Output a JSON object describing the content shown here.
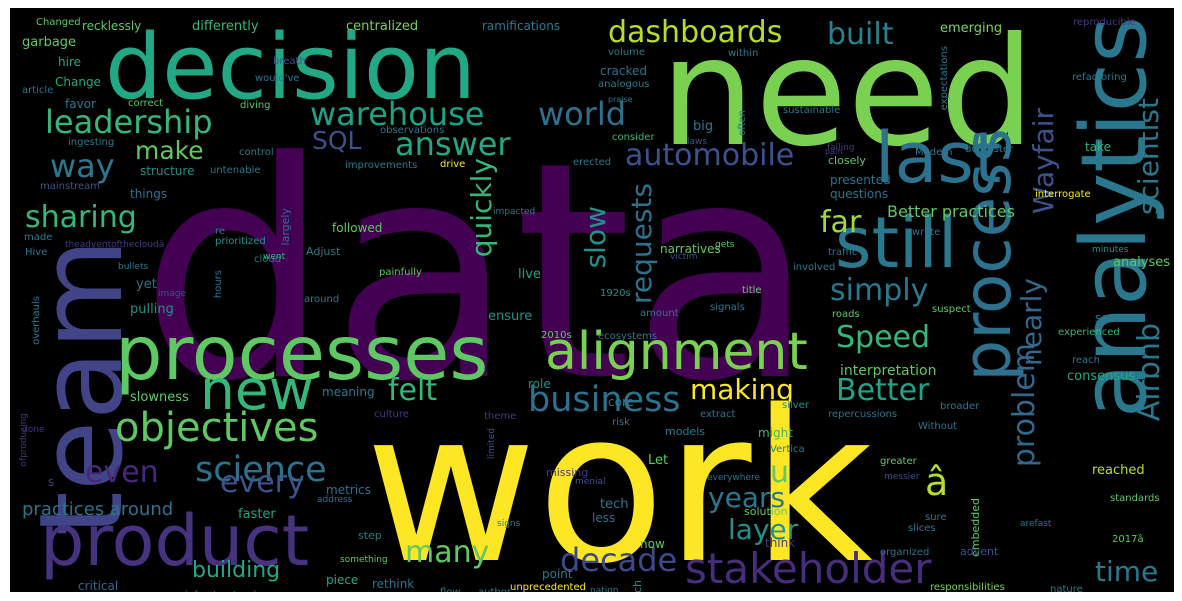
{
  "title": "",
  "background_color": "#000000",
  "colormap": "viridis",
  "words": [
    {
      "text": "data",
      "color": "#440154"
    },
    {
      "text": "work",
      "color": "#fde725"
    },
    {
      "text": "need",
      "color": "#7ad151"
    },
    {
      "text": "decision",
      "color": "#22a884"
    },
    {
      "text": "analytics",
      "color": "#2a788e"
    },
    {
      "text": "team",
      "color": "#414487"
    },
    {
      "text": "processes",
      "color": "#5ec962"
    },
    {
      "text": "product",
      "color": "#46327e"
    },
    {
      "text": "process",
      "color": "#2c728e"
    },
    {
      "text": "still",
      "color": "#2a788e"
    },
    {
      "text": "last",
      "color": "#2c728e"
    },
    {
      "text": "alignment",
      "color": "#7ad151"
    },
    {
      "text": "new",
      "color": "#35b779"
    },
    {
      "text": "objectives",
      "color": "#5ec962"
    },
    {
      "text": "stakeholder",
      "color": "#472d7b"
    },
    {
      "text": "science",
      "color": "#2c728e"
    },
    {
      "text": "business",
      "color": "#2c728e"
    },
    {
      "text": "Airbnb",
      "color": "#2a788e"
    },
    {
      "text": "scientist",
      "color": "#2a788e"
    },
    {
      "text": "Wayfair",
      "color": "#3b528b"
    },
    {
      "text": "problem",
      "color": "#31688e"
    },
    {
      "text": "decade",
      "color": "#3e4989"
    },
    {
      "text": "leadership",
      "color": "#35b779"
    },
    {
      "text": "warehouse",
      "color": "#1fa187"
    },
    {
      "text": "world",
      "color": "#2c728e"
    },
    {
      "text": "dashboards",
      "color": "#b5de2b"
    },
    {
      "text": "built",
      "color": "#26828e"
    },
    {
      "text": "answer",
      "color": "#22a884"
    },
    {
      "text": "way",
      "color": "#2a788e"
    },
    {
      "text": "automobile",
      "color": "#3b528b"
    },
    {
      "text": "sharing",
      "color": "#35b779"
    },
    {
      "text": "quickly",
      "color": "#35b779"
    },
    {
      "text": "requests",
      "color": "#2c728e"
    },
    {
      "text": "slow",
      "color": "#21918c"
    },
    {
      "text": "far",
      "color": "#9fda3a"
    },
    {
      "text": "Speed",
      "color": "#35b779"
    },
    {
      "text": "simply",
      "color": "#2a788e"
    },
    {
      "text": "nearly",
      "color": "#31688e"
    },
    {
      "text": "even",
      "color": "#482878"
    },
    {
      "text": "felt",
      "color": "#35b779"
    },
    {
      "text": "making",
      "color": "#fde725"
    },
    {
      "text": "Better",
      "color": "#20a386"
    },
    {
      "text": "every",
      "color": "#3b528b"
    },
    {
      "text": "years",
      "color": "#2a788e"
    },
    {
      "text": "many",
      "color": "#5ec962"
    },
    {
      "text": "time",
      "color": "#2a788e"
    },
    {
      "text": "layer",
      "color": "#21918c"
    },
    {
      "text": "u",
      "color": "#5ec962"
    },
    {
      "text": "â",
      "color": "#b5de2b"
    },
    {
      "text": "make",
      "color": "#5ec962"
    },
    {
      "text": "SQL",
      "color": "#3b528b"
    },
    {
      "text": "building",
      "color": "#22a884"
    },
    {
      "text": "practices around",
      "color": "#2c728e"
    },
    {
      "text": "Better practices",
      "color": "#5ec962"
    },
    {
      "text": "interpretation",
      "color": "#5ec962"
    },
    {
      "text": "consensus",
      "color": "#22a884"
    },
    {
      "text": "analyses",
      "color": "#5ec962"
    },
    {
      "text": "differently",
      "color": "#35b779"
    },
    {
      "text": "centralized",
      "color": "#7ad151"
    },
    {
      "text": "emerging",
      "color": "#7ad151"
    },
    {
      "text": "recklessly",
      "color": "#5ec962"
    },
    {
      "text": "ramifications",
      "color": "#2a788e"
    },
    {
      "text": "Changed",
      "color": "#5ec962"
    },
    {
      "text": "garbage",
      "color": "#5ec962"
    },
    {
      "text": "hire",
      "color": "#20a386"
    },
    {
      "text": "Change",
      "color": "#22a884"
    },
    {
      "text": "favor",
      "color": "#2a788e"
    },
    {
      "text": "structure",
      "color": "#21918c"
    },
    {
      "text": "things",
      "color": "#2c728e"
    },
    {
      "text": "followed",
      "color": "#5ec962"
    },
    {
      "text": "presented",
      "color": "#2c728e"
    },
    {
      "text": "questions",
      "color": "#2c728e"
    },
    {
      "text": "narratives",
      "color": "#5ec962"
    },
    {
      "text": "live",
      "color": "#20a386"
    },
    {
      "text": "ensure",
      "color": "#21918c"
    },
    {
      "text": "pulling",
      "color": "#21918c"
    },
    {
      "text": "yet",
      "color": "#2c728e"
    },
    {
      "text": "meaning",
      "color": "#2a788e"
    },
    {
      "text": "role",
      "color": "#21918c"
    },
    {
      "text": "core",
      "color": "#2a788e"
    },
    {
      "text": "slowness",
      "color": "#5ec962"
    },
    {
      "text": "models",
      "color": "#2a788e"
    },
    {
      "text": "might",
      "color": "#35b779"
    },
    {
      "text": "Let",
      "color": "#5ec962"
    },
    {
      "text": "metrics",
      "color": "#2c728e"
    },
    {
      "text": "tech",
      "color": "#2a788e"
    },
    {
      "text": "faster",
      "color": "#20a386"
    },
    {
      "text": "less",
      "color": "#2c728e"
    },
    {
      "text": "now",
      "color": "#5ec962"
    },
    {
      "text": "point",
      "color": "#2a788e"
    },
    {
      "text": "much",
      "color": "#21918c"
    },
    {
      "text": "piece",
      "color": "#22a884"
    },
    {
      "text": "rethink",
      "color": "#2c728e"
    },
    {
      "text": "step",
      "color": "#2a788e"
    },
    {
      "text": "critical",
      "color": "#31688e"
    },
    {
      "text": "take",
      "color": "#35b779"
    },
    {
      "text": "see",
      "color": "#2a788e"
    },
    {
      "text": "reached",
      "color": "#b5de2b"
    },
    {
      "text": "standards",
      "color": "#5ec962"
    },
    {
      "text": "sure",
      "color": "#2a788e"
    },
    {
      "text": "slices",
      "color": "#2a788e"
    },
    {
      "text": "Vertica",
      "color": "#2a788e"
    },
    {
      "text": "menial",
      "color": "#3b528b"
    },
    {
      "text": "solution",
      "color": "#5ec962"
    },
    {
      "text": "embedded",
      "color": "#5ec962"
    },
    {
      "text": "advent",
      "color": "#3b528b"
    },
    {
      "text": "responsibilities",
      "color": "#7ad151"
    },
    {
      "text": "unprecedented",
      "color": "#fde725"
    },
    {
      "text": "organized",
      "color": "#2c728e"
    },
    {
      "text": "think",
      "color": "#443983"
    },
    {
      "text": "experienced",
      "color": "#35b779"
    },
    {
      "text": "drive",
      "color": "#fde725"
    },
    {
      "text": "closely",
      "color": "#5ec962"
    },
    {
      "text": "interrogate",
      "color": "#fde725"
    },
    {
      "text": "wrote",
      "color": "#2c728e"
    },
    {
      "text": "minutes",
      "color": "#21918c"
    },
    {
      "text": "traffic",
      "color": "#2a788e"
    },
    {
      "text": "involved",
      "color": "#2a788e"
    },
    {
      "text": "suspect",
      "color": "#5ec962"
    },
    {
      "text": "roads",
      "color": "#5ec962"
    },
    {
      "text": "broader",
      "color": "#2a788e"
    },
    {
      "text": "repercussions",
      "color": "#2c728e"
    },
    {
      "text": "Without",
      "color": "#2c728e"
    },
    {
      "text": "greater",
      "color": "#5ec962"
    },
    {
      "text": "everywhere",
      "color": "#2c728e"
    },
    {
      "text": "messier",
      "color": "#3b528b"
    },
    {
      "text": "silver",
      "color": "#21918c"
    },
    {
      "text": "extract",
      "color": "#2a788e"
    },
    {
      "text": "culture",
      "color": "#443983"
    },
    {
      "text": "risk",
      "color": "#2a788e"
    },
    {
      "text": "limited",
      "color": "#3b528b"
    },
    {
      "text": "missing",
      "color": "#443983"
    },
    {
      "text": "theme",
      "color": "#443983"
    },
    {
      "text": "signals",
      "color": "#2a788e"
    },
    {
      "text": "amount",
      "color": "#2a788e"
    },
    {
      "text": "1920s",
      "color": "#21918c"
    },
    {
      "text": "2010s",
      "color": "#5ec962"
    },
    {
      "text": "ecosystems",
      "color": "#2a788e"
    },
    {
      "text": "around",
      "color": "#2a788e"
    },
    {
      "text": "painfully",
      "color": "#5ec962"
    },
    {
      "text": "Adjust",
      "color": "#2a788e"
    },
    {
      "text": "cloud",
      "color": "#2a788e"
    },
    {
      "text": "hours",
      "color": "#2a788e"
    },
    {
      "text": "prioritized",
      "color": "#21918c"
    },
    {
      "text": "went",
      "color": "#35b779"
    },
    {
      "text": "victim",
      "color": "#3b528b"
    },
    {
      "text": "gets",
      "color": "#5ec962"
    },
    {
      "text": "title",
      "color": "#5ec962"
    },
    {
      "text": "sustainable",
      "color": "#2a788e"
    },
    {
      "text": "Modern",
      "color": "#2a788e"
    },
    {
      "text": "dumpster",
      "color": "#2a788e"
    },
    {
      "text": "falling",
      "color": "#443983"
    },
    {
      "text": "consider",
      "color": "#35b779"
    },
    {
      "text": "laws",
      "color": "#3b528b"
    },
    {
      "text": "big",
      "color": "#2a788e"
    },
    {
      "text": "often",
      "color": "#2a788e"
    },
    {
      "text": "cracked",
      "color": "#2c728e"
    },
    {
      "text": "analogous",
      "color": "#2a788e"
    },
    {
      "text": "volume",
      "color": "#2a788e"
    },
    {
      "text": "within",
      "color": "#2a788e"
    },
    {
      "text": "expectations",
      "color": "#2a788e"
    },
    {
      "text": "refactoring",
      "color": "#2a788e"
    },
    {
      "text": "reproducible",
      "color": "#443983"
    },
    {
      "text": "observations",
      "color": "#2a788e"
    },
    {
      "text": "improvements",
      "color": "#2a788e"
    },
    {
      "text": "erected",
      "color": "#2a788e"
    },
    {
      "text": "control",
      "color": "#2a788e"
    },
    {
      "text": "untenable",
      "color": "#2a788e"
    },
    {
      "text": "ingesting",
      "color": "#2a788e"
    },
    {
      "text": "mainstream",
      "color": "#3b528b"
    },
    {
      "text": "correct",
      "color": "#5ec962"
    },
    {
      "text": "diving",
      "color": "#5ec962"
    },
    {
      "text": "would've",
      "color": "#2a788e"
    },
    {
      "text": "breath",
      "color": "#3b528b"
    },
    {
      "text": "article",
      "color": "#2c728e"
    },
    {
      "text": "made",
      "color": "#2a788e"
    },
    {
      "text": "Hive",
      "color": "#2a788e"
    },
    {
      "text": "re",
      "color": "#2a788e"
    },
    {
      "text": "theadventofthecloudâ",
      "color": "#443983"
    },
    {
      "text": "bullets",
      "color": "#2a788e"
    },
    {
      "text": "overhauls",
      "color": "#2a788e"
    },
    {
      "text": "impacted",
      "color": "#2a788e"
    },
    {
      "text": "largely",
      "color": "#2c728e"
    },
    {
      "text": "reach",
      "color": "#2a788e"
    },
    {
      "text": "done",
      "color": "#443983"
    },
    {
      "text": "ofproducing",
      "color": "#443983"
    },
    {
      "text": "address",
      "color": "#2a788e"
    },
    {
      "text": "signs",
      "color": "#2a788e"
    },
    {
      "text": "means",
      "color": "#2a788e"
    },
    {
      "text": "something",
      "color": "#5ec962"
    },
    {
      "text": "infrastructural",
      "color": "#2a788e"
    },
    {
      "text": "flow",
      "color": "#2a788e"
    },
    {
      "text": "author",
      "color": "#2a788e"
    },
    {
      "text": "nation",
      "color": "#2a788e"
    },
    {
      "text": "nature",
      "color": "#2a788e"
    },
    {
      "text": "2017â",
      "color": "#5ec962"
    },
    {
      "text": "arefast",
      "color": "#2a788e"
    },
    {
      "text": "s",
      "color": "#443983"
    },
    {
      "text": "image",
      "color": "#3b528b"
    },
    {
      "text": "praise",
      "color": "#2a788e"
    },
    {
      "text": "pain",
      "color": "#443983"
    }
  ]
}
